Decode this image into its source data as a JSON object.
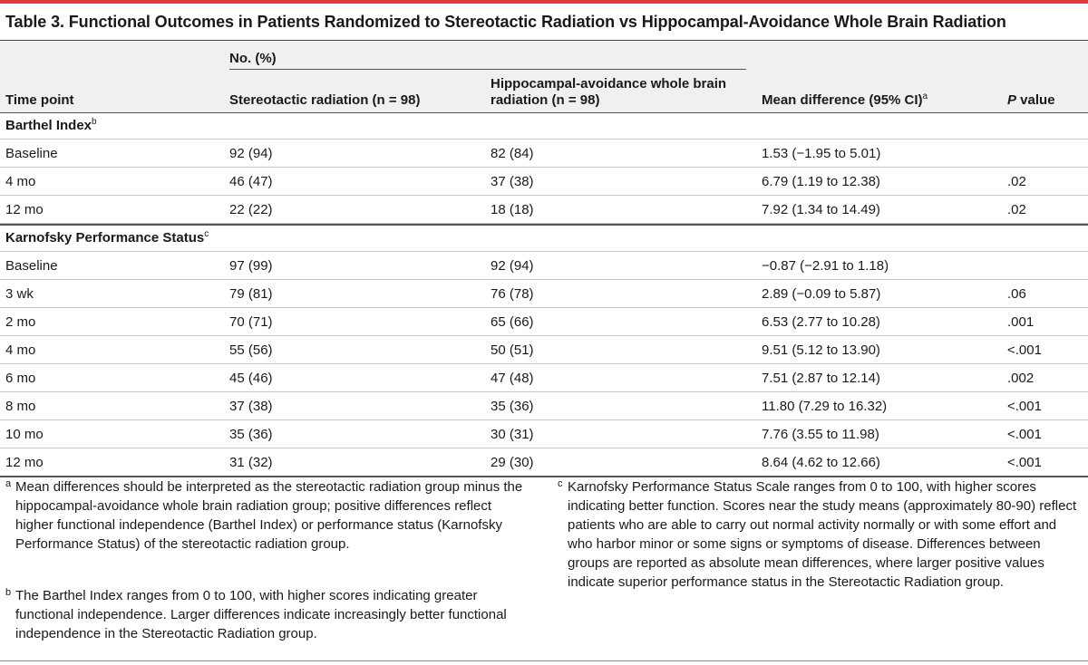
{
  "title": "Table 3. Functional Outcomes in Patients Randomized to Stereotactic Radiation vs Hippocampal-Avoidance Whole Brain Radiation",
  "header": {
    "group_label": "No. (%)",
    "time_point": "Time point",
    "srt": "Stereotactic radiation (n = 98)",
    "ha_wbrt": "Hippocampal-avoidance whole brain radiation (n = 98)",
    "mean_diff": "Mean difference (95% CI)",
    "mean_diff_mark": "a",
    "p_italic": "P",
    "p_rest": " value"
  },
  "barthel": {
    "label": "Barthel Index",
    "mark": "b",
    "rows": [
      {
        "time": "Baseline",
        "srt": "92 (94)",
        "ha": "82 (84)",
        "md": "1.53 (−1.95 to 5.01)",
        "p": ""
      },
      {
        "time": "4 mo",
        "srt": "46 (47)",
        "ha": "37 (38)",
        "md": "6.79 (1.19 to 12.38)",
        "p": ".02"
      },
      {
        "time": "12 mo",
        "srt": "22 (22)",
        "ha": "18 (18)",
        "md": "7.92 (1.34 to 14.49)",
        "p": ".02"
      }
    ]
  },
  "karnofsky": {
    "label": "Karnofsky Performance Status",
    "mark": "c",
    "rows": [
      {
        "time": "Baseline",
        "srt": "97 (99)",
        "ha": "92 (94)",
        "md": "−0.87 (−2.91 to 1.18)",
        "p": ""
      },
      {
        "time": "3 wk",
        "srt": "79 (81)",
        "ha": "76 (78)",
        "md": "2.89 (−0.09 to 5.87)",
        "p": ".06"
      },
      {
        "time": "2 mo",
        "srt": "70 (71)",
        "ha": "65 (66)",
        "md": "6.53 (2.77 to 10.28)",
        "p": ".001"
      },
      {
        "time": "4 mo",
        "srt": "55 (56)",
        "ha": "50 (51)",
        "md": "9.51 (5.12 to 13.90)",
        "p": "<.001"
      },
      {
        "time": "6 mo",
        "srt": "45 (46)",
        "ha": "47 (48)",
        "md": "7.51 (2.87 to 12.14)",
        "p": ".002"
      },
      {
        "time": "8 mo",
        "srt": "37 (38)",
        "ha": "35 (36)",
        "md": "11.80 (7.29 to 16.32)",
        "p": "<.001"
      },
      {
        "time": "10 mo",
        "srt": "35 (36)",
        "ha": "30 (31)",
        "md": "7.76 (3.55 to 11.98)",
        "p": "<.001"
      },
      {
        "time": "12 mo",
        "srt": "31 (32)",
        "ha": "29 (30)",
        "md": "8.64 (4.62 to 12.66)",
        "p": "<.001"
      }
    ]
  },
  "footnotes": {
    "a": {
      "mark": "a",
      "text": "Mean differences should be interpreted as the stereotactic radiation group minus the hippocampal-avoidance whole brain radiation group; positive differences reflect higher functional independence (Barthel Index) or performance status (Karnofsky Performance Status) of the stereotactic radiation group."
    },
    "b": {
      "mark": "b",
      "text": "The Barthel Index ranges from 0 to 100, with higher scores indicating greater functional independence. Larger differences indicate increasingly better functional independence in the Stereotactic Radiation group."
    },
    "c": {
      "mark": "c",
      "text": "Karnofsky Performance Status Scale ranges from 0 to 100, with higher scores indicating better function. Scores near the study means (approximately 80-90) reflect patients who are able to carry out normal activity normally or with some effort and who harbor minor or some signs or symptoms of disease. Differences between groups are reported as absolute mean differences, where larger positive values indicate superior performance status in the Stereotactic Radiation group."
    }
  },
  "colors": {
    "accent": "#e2393f",
    "header_bg": "#eef0f2"
  }
}
